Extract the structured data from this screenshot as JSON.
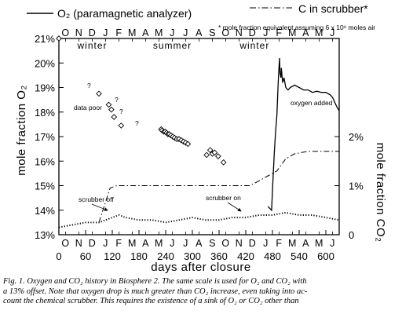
{
  "chart_data": {
    "type": "line",
    "legend": {
      "o2": "O₂ (paramagnetic analyzer)",
      "c_scrubber": "C in scrubber*",
      "footnote": "* mole fraction equivalent assuming 6 x 10⁶ moles air"
    },
    "xlabel": "days after closure",
    "ylabel_left": "mole fraction O₂",
    "ylabel_right": "mole fraction CO₂",
    "xlim": [
      0,
      630
    ],
    "ylim_left": [
      13,
      21
    ],
    "ylim_right_pct": [
      0,
      4
    ],
    "x_ticks": [
      "0",
      "60",
      "120",
      "180",
      "240",
      "300",
      "360",
      "420",
      "480",
      "540",
      "600"
    ],
    "x_tick_values": [
      0,
      60,
      120,
      180,
      240,
      300,
      360,
      420,
      480,
      540,
      600
    ],
    "y_left_ticks": [
      "13%",
      "14%",
      "15%",
      "16%",
      "17%",
      "18%",
      "19%",
      "20%",
      "21%"
    ],
    "y_left_tick_values": [
      13,
      14,
      15,
      16,
      17,
      18,
      19,
      20,
      21
    ],
    "y_right_ticks": [
      "0",
      "1%",
      "2%"
    ],
    "y_right_tick_values": [
      0,
      1,
      2
    ],
    "month_labels": [
      "O",
      "N",
      "D",
      "J",
      "F",
      "M",
      "A",
      "M",
      "J",
      "J",
      "A",
      "S",
      "O",
      "N",
      "D",
      "J",
      "F",
      "M",
      "A",
      "M",
      "J"
    ],
    "seasons": [
      {
        "label": "winter",
        "x": 75
      },
      {
        "label": "summer",
        "x": 255
      },
      {
        "label": "winter",
        "x": 440
      }
    ],
    "annotations": {
      "data_poor": "data poor",
      "oxygen_added": "oxygen added",
      "scrubber_off": "scrubber off",
      "scrubber_on": "scrubber on",
      "question_mark": "?"
    },
    "series": [
      {
        "name": "O₂ (paramagnetic analyzer)",
        "style": "solid",
        "x": [
          470,
          478,
          481,
          484,
          487,
          490,
          492,
          494,
          496,
          497,
          499,
          500,
          503,
          506,
          510,
          515,
          520,
          530,
          540,
          550,
          560,
          570,
          580,
          590,
          600,
          610,
          615,
          620,
          625,
          630
        ],
        "y": [
          14.15,
          14.0,
          15.2,
          16.3,
          17.2,
          17.9,
          18.8,
          19.6,
          20.2,
          19.6,
          19.4,
          19.8,
          19.2,
          19.4,
          19.0,
          18.9,
          19.0,
          19.1,
          19.0,
          18.9,
          18.9,
          18.8,
          18.85,
          18.8,
          18.8,
          18.7,
          18.6,
          18.4,
          18.2,
          18.05
        ]
      },
      {
        "name": "O₂ (discrete samples)",
        "style": "diamond",
        "x": [
          0,
          90,
          112,
          118,
          124,
          140,
          230,
          232,
          236,
          239,
          242,
          245,
          248,
          252,
          256,
          260,
          265,
          270,
          275,
          280,
          285,
          290,
          332,
          340,
          345,
          350,
          358,
          370
        ],
        "y": [
          21.0,
          18.75,
          18.3,
          18.1,
          17.8,
          17.45,
          17.3,
          17.25,
          17.2,
          17.2,
          17.15,
          17.1,
          17.1,
          17.05,
          17.0,
          16.95,
          16.9,
          16.9,
          16.85,
          16.8,
          16.75,
          16.7,
          16.25,
          16.45,
          16.3,
          16.35,
          16.2,
          15.95
        ]
      },
      {
        "name": "C in scrubber*",
        "style": "dashdot",
        "unit": "% CO₂ equivalent",
        "x": [
          90,
          115,
          130,
          200,
          300,
          400,
          430,
          470,
          490,
          510,
          530,
          560,
          600,
          630
        ],
        "y": [
          0.25,
          0.95,
          1.0,
          1.0,
          1.0,
          1.0,
          1.0,
          1.2,
          1.3,
          1.55,
          1.65,
          1.7,
          1.7,
          1.7
        ]
      },
      {
        "name": "CO₂",
        "style": "dotted",
        "unit": "% CO₂",
        "x": [
          0,
          30,
          60,
          90,
          105,
          120,
          135,
          150,
          180,
          210,
          240,
          270,
          300,
          330,
          360,
          390,
          420,
          450,
          480,
          510,
          540,
          570,
          600,
          630
        ],
        "y": [
          0.15,
          0.2,
          0.25,
          0.25,
          0.3,
          0.35,
          0.4,
          0.35,
          0.3,
          0.3,
          0.25,
          0.3,
          0.35,
          0.3,
          0.3,
          0.35,
          0.35,
          0.4,
          0.4,
          0.45,
          0.4,
          0.4,
          0.35,
          0.3
        ]
      }
    ]
  },
  "caption": {
    "lines": [
      "Fig. 1.   Oxygen and CO₂ history in Biosphere 2. The same scale is used for O₂ and CO₂ with",
      "a 13% offset. Note that oxygen drop is much greater than CO₂ increase, even taking into ac-",
      "count the chemical scrubber. This requires the existence of a sink of O₂ or CO₂ other than"
    ]
  }
}
